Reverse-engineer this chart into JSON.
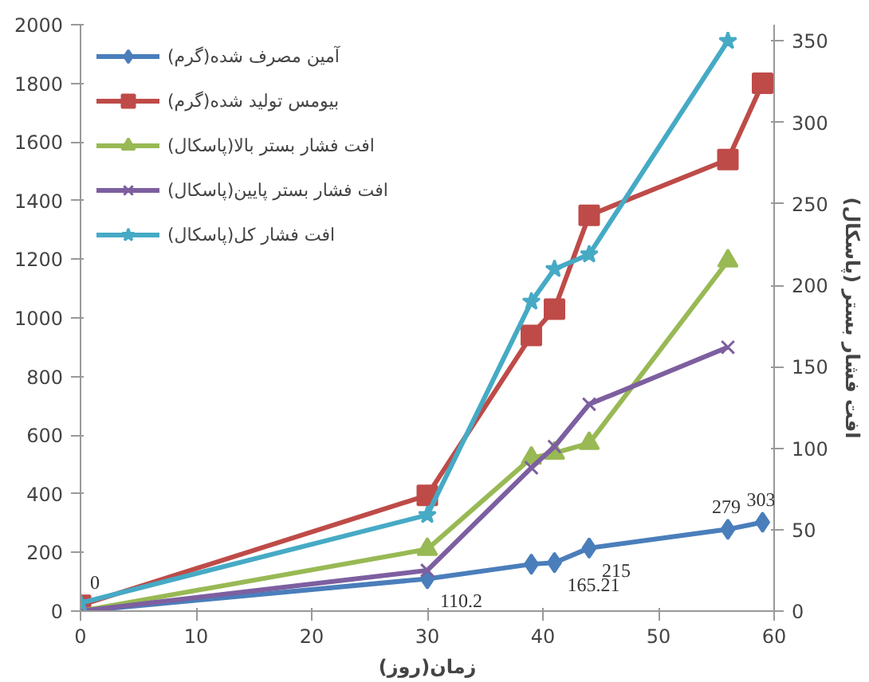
{
  "chart_data": {
    "type": "line",
    "xlabel": "زمان(روز)",
    "y2label": "افت فشار بستر (پاسکال)",
    "xlim": [
      0,
      60
    ],
    "xticks": [
      0,
      10,
      20,
      30,
      40,
      50,
      60
    ],
    "ylim": [
      0,
      2000
    ],
    "yticks": [
      0,
      200,
      400,
      600,
      800,
      1000,
      1200,
      1400,
      1600,
      1800,
      2000
    ],
    "y2lim": [
      0,
      360
    ],
    "y2ticks": [
      0,
      50,
      100,
      150,
      200,
      250,
      300,
      350
    ],
    "grid": false,
    "legend": "top left",
    "line_style": "solid",
    "series": [
      {
        "name": "آمین مصرف شده(گرم)",
        "color": "#4a7ebb",
        "marker": "diamond",
        "x": [
          0,
          30,
          39,
          41,
          44,
          56,
          59
        ],
        "values": [
          0,
          110.2,
          160,
          165.21,
          215,
          279,
          303
        ],
        "value_labels": [
          "0",
          "110.2",
          null,
          "165.21",
          "215",
          "279",
          "303"
        ]
      },
      {
        "name": "بیومس تولید شده(گرم)",
        "color": "#be4b48",
        "marker": "square",
        "x": [
          0,
          30,
          39,
          41,
          44,
          56,
          59
        ],
        "values": [
          20,
          395,
          940,
          1030,
          1350,
          1540,
          1800
        ]
      },
      {
        "name": "افت فشار بستر بالا(پاسکال)",
        "color": "#98b954",
        "marker": "triangle",
        "axis": "y2",
        "x": [
          0,
          30,
          39,
          41,
          44,
          56
        ],
        "values": [
          0,
          38,
          94,
          97,
          103,
          215
        ]
      },
      {
        "name": "افت فشار بستر پایین(پاسکال)",
        "color": "#7d5fa0",
        "marker": "cross",
        "axis": "y2",
        "x": [
          0,
          30,
          39,
          41,
          44,
          56
        ],
        "values": [
          0,
          25,
          88,
          101,
          127,
          162
        ]
      },
      {
        "name": "افت فشار کل(پاسکال)",
        "color": "#46aac5",
        "marker": "star",
        "axis": "y2",
        "x": [
          0,
          30,
          39,
          41,
          44,
          56
        ],
        "values": [
          5,
          59,
          190,
          210,
          219,
          350
        ]
      }
    ]
  }
}
